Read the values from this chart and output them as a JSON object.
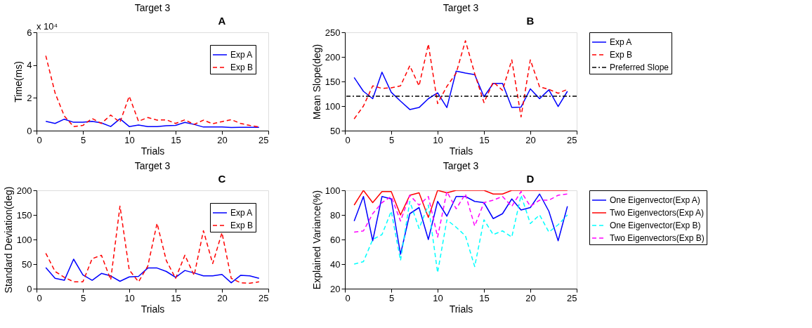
{
  "chart_data": [
    {
      "type": "line",
      "title": "Target 3",
      "xlabel": "Trials",
      "ylabel": "Time(ms)",
      "annotations": [
        "A",
        "x 10⁴"
      ],
      "x": [
        1,
        2,
        3,
        4,
        5,
        6,
        7,
        8,
        9,
        10,
        11,
        12,
        13,
        14,
        15,
        16,
        17,
        18,
        19,
        20,
        21,
        22,
        23,
        24
      ],
      "xlim": [
        0,
        25
      ],
      "xticks": [
        0,
        5,
        10,
        15,
        20,
        25
      ],
      "ylim": [
        0,
        6
      ],
      "yticks": [
        0,
        2,
        4,
        6
      ],
      "grid": false,
      "legend": "top right",
      "marker": "none",
      "series": [
        {
          "name": "Exp A",
          "color": "#0000ff",
          "line_style": "solid",
          "values": [
            0.57,
            0.44,
            0.7,
            0.51,
            0.51,
            0.57,
            0.47,
            0.25,
            0.72,
            0.25,
            0.34,
            0.25,
            0.25,
            0.3,
            0.32,
            0.5,
            0.38,
            0.22,
            0.22,
            0.22,
            0.19,
            0.2,
            0.2,
            0.2
          ]
        },
        {
          "name": "Exp B",
          "color": "#ff0000",
          "line_style": "dashed",
          "values": [
            4.57,
            2.3,
            0.89,
            0.25,
            0.32,
            0.74,
            0.44,
            0.95,
            0.51,
            2.1,
            0.57,
            0.8,
            0.64,
            0.66,
            0.44,
            0.66,
            0.38,
            0.64,
            0.42,
            0.55,
            0.67,
            0.44,
            0.32,
            0.22
          ]
        }
      ]
    },
    {
      "type": "line",
      "title": "Target 3",
      "xlabel": "Trials",
      "ylabel": "Mean Slope(deg)",
      "annotations": [
        "B"
      ],
      "x": [
        1,
        2,
        3,
        4,
        5,
        6,
        7,
        8,
        9,
        10,
        11,
        12,
        13,
        14,
        15,
        16,
        17,
        18,
        19,
        20,
        21,
        22,
        23,
        24
      ],
      "xlim": [
        0,
        25
      ],
      "xticks": [
        0,
        5,
        10,
        15,
        20,
        25
      ],
      "ylim": [
        50,
        250
      ],
      "yticks": [
        50,
        100,
        150,
        200,
        250
      ],
      "grid": false,
      "legend": "right",
      "marker": "none",
      "series": [
        {
          "name": "Exp A",
          "color": "#0000ff",
          "line_style": "solid",
          "values": [
            158,
            130,
            115,
            169,
            128,
            110,
            93,
            97,
            115,
            127,
            97,
            171,
            167,
            164,
            119,
            146,
            146,
            97,
            98,
            135,
            115,
            133,
            99,
            130
          ]
        },
        {
          "name": "Exp B",
          "color": "#ff0000",
          "line_style": "dashed",
          "values": [
            74,
            100,
            141,
            136,
            137,
            141,
            182,
            141,
            226,
            105,
            140,
            167,
            233,
            166,
            107,
            149,
            132,
            194,
            78,
            194,
            139,
            134,
            126,
            134
          ]
        }
      ],
      "ref_lines": [
        {
          "axis": "y",
          "value": 120,
          "label": "Preferred Slope",
          "color": "#000000",
          "line_style": "dashdot"
        }
      ]
    },
    {
      "type": "line",
      "title": "Target 3",
      "xlabel": "Trials",
      "ylabel": "Standard Deviation(deg)",
      "annotations": [
        "C"
      ],
      "x": [
        1,
        2,
        3,
        4,
        5,
        6,
        7,
        8,
        9,
        10,
        11,
        12,
        13,
        14,
        15,
        16,
        17,
        18,
        19,
        20,
        21,
        22,
        23,
        24
      ],
      "xlim": [
        0,
        25
      ],
      "xticks": [
        0,
        5,
        10,
        15,
        20,
        25
      ],
      "ylim": [
        0,
        200
      ],
      "yticks": [
        0,
        50,
        100,
        150,
        200
      ],
      "grid": false,
      "legend": "top right",
      "marker": "none",
      "series": [
        {
          "name": "Exp A",
          "color": "#0000ff",
          "line_style": "solid",
          "values": [
            43,
            21,
            17,
            60,
            28,
            17,
            31,
            26,
            15,
            24,
            25,
            42,
            42,
            35,
            23,
            37,
            32,
            26,
            26,
            29,
            12,
            27,
            26,
            21
          ]
        },
        {
          "name": "Exp B",
          "color": "#ff0000",
          "line_style": "dashed",
          "values": [
            72,
            35,
            23,
            14,
            14,
            61,
            68,
            18,
            168,
            38,
            14,
            46,
            133,
            57,
            21,
            68,
            27,
            118,
            51,
            114,
            21,
            12,
            11,
            14
          ]
        }
      ]
    },
    {
      "type": "line",
      "title": "Target 3",
      "xlabel": "Trials",
      "ylabel": "Explained Variance(%)",
      "annotations": [
        "D"
      ],
      "x": [
        1,
        2,
        3,
        4,
        5,
        6,
        7,
        8,
        9,
        10,
        11,
        12,
        13,
        14,
        15,
        16,
        17,
        18,
        19,
        20,
        21,
        22,
        23,
        24
      ],
      "xlim": [
        0,
        25
      ],
      "xticks": [
        0,
        5,
        10,
        15,
        20,
        25
      ],
      "ylim": [
        20,
        100
      ],
      "yticks": [
        20,
        40,
        60,
        80,
        100
      ],
      "grid": false,
      "legend": "right",
      "marker": "none",
      "series": [
        {
          "name": "One Eigenvector(Exp A)",
          "color": "#0000ff",
          "line_style": "solid",
          "values": [
            75,
            95,
            59,
            95,
            93,
            48,
            81,
            86,
            60,
            91,
            79,
            95,
            95,
            91,
            90,
            77,
            81,
            93,
            84,
            86,
            97,
            83,
            59,
            87
          ]
        },
        {
          "name": "Two Eigenvectors(Exp A)",
          "color": "#ff0000",
          "line_style": "solid",
          "values": [
            88,
            100,
            90,
            99,
            99,
            80,
            96,
            98,
            78,
            100,
            98,
            100,
            100,
            100,
            100,
            97,
            97,
            100,
            100,
            100,
            100,
            100,
            100,
            100
          ]
        },
        {
          "name": "One Eigenvector(Exp B)",
          "color": "#00ffff",
          "line_style": "dashed",
          "values": [
            40,
            42,
            60,
            64,
            83,
            43,
            91,
            69,
            88,
            33,
            76,
            70,
            63,
            38,
            76,
            64,
            67,
            62,
            96,
            73,
            80,
            66,
            72,
            80
          ]
        },
        {
          "name": "Two Eigenvectors(Exp B)",
          "color": "#ff00ff",
          "line_style": "dashed",
          "values": [
            66,
            67,
            81,
            90,
            95,
            75,
            96,
            88,
            95,
            62,
            99,
            85,
            97,
            71,
            90,
            92,
            95,
            87,
            99,
            87,
            92,
            92,
            96,
            97
          ]
        }
      ]
    }
  ]
}
